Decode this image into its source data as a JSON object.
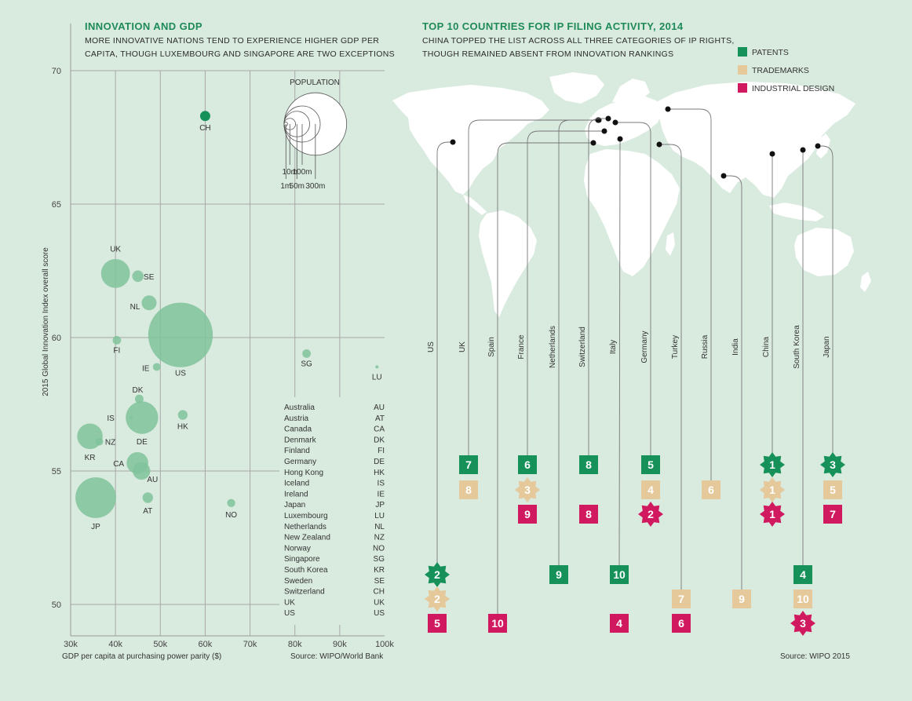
{
  "colors": {
    "background": "#d9eadf",
    "gdp_bubble": "#7fc39b",
    "ch_bubble": "#16915a",
    "grid": "#a8a8a8",
    "patents": "#16915a",
    "trademarks": "#e6c99a",
    "industrial_design": "#d0195f",
    "map_land": "#ffffff",
    "title": "#1e8a58"
  },
  "left_panel": {
    "title": "INNOVATION AND GDP",
    "subtitle_line1": "MORE INNOVATIVE NATIONS TEND TO EXPERIENCE HIGHER GDP PER",
    "subtitle_line2": "CAPITA, THOUGH LUXEMBOURG AND SINGAPORE ARE TWO EXCEPTIONS",
    "source": "Source: WIPO/World Bank",
    "population_key": {
      "title": "POPULATION",
      "labels": [
        "1m",
        "10m",
        "50m",
        "100m",
        "300m"
      ],
      "values": [
        1,
        10,
        50,
        100,
        300
      ]
    },
    "abbreviations": [
      {
        "name": "Australia",
        "code": "AU"
      },
      {
        "name": "Austria",
        "code": "AT"
      },
      {
        "name": "Canada",
        "code": "CA"
      },
      {
        "name": "Denmark",
        "code": "DK"
      },
      {
        "name": "Finland",
        "code": "FI"
      },
      {
        "name": "Germany",
        "code": "DE"
      },
      {
        "name": "Hong Kong",
        "code": "HK"
      },
      {
        "name": "Iceland",
        "code": "IS"
      },
      {
        "name": "Ireland",
        "code": "IE"
      },
      {
        "name": "Japan",
        "code": "JP"
      },
      {
        "name": "Luxembourg",
        "code": "LU"
      },
      {
        "name": "Netherlands",
        "code": "NL"
      },
      {
        "name": "New Zealand",
        "code": "NZ"
      },
      {
        "name": "Norway",
        "code": "NO"
      },
      {
        "name": "Singapore",
        "code": "SG"
      },
      {
        "name": "South Korea",
        "code": "KR"
      },
      {
        "name": "Sweden",
        "code": "SE"
      },
      {
        "name": "Switzerland",
        "code": "CH"
      },
      {
        "name": "UK",
        "code": "UK"
      },
      {
        "name": "US",
        "code": "US"
      }
    ]
  },
  "right_panel": {
    "title": "TOP 10 COUNTRIES FOR IP FILING ACTIVITY, 2014",
    "subtitle_line1": "CHINA TOPPED THE LIST ACROSS ALL THREE CATEGORIES OF IP RIGHTS,",
    "subtitle_line2": "THOUGH REMAINED ABSENT FROM INNOVATION RANKINGS",
    "source": "Source: WIPO 2015",
    "legend": [
      {
        "label": "PATENTS",
        "key": "patents"
      },
      {
        "label": "TRADEMARKS",
        "key": "trademarks"
      },
      {
        "label": "INDUSTRIAL DESIGN",
        "key": "industrial_design"
      }
    ]
  },
  "chart_data": [
    {
      "type": "scatter",
      "title": "INNOVATION AND GDP",
      "xlabel": "GDP per capita at purchasing power parity ($)",
      "ylabel": "2015 Global Innovation Index overall score",
      "xlim": [
        30000,
        100000
      ],
      "ylim": [
        49,
        71
      ],
      "x_ticks": [
        30000,
        40000,
        50000,
        60000,
        70000,
        80000,
        90000,
        100000
      ],
      "x_tick_labels": [
        "30k",
        "40k",
        "50k",
        "60k",
        "70k",
        "80k",
        "90k",
        "100k"
      ],
      "y_ticks": [
        50,
        55,
        60,
        65,
        70
      ],
      "y_tick_labels": [
        "50",
        "55",
        "60",
        "65",
        "70"
      ],
      "grid": true,
      "size_encoding": "population (m)",
      "points": [
        {
          "code": "CH",
          "x": 60000,
          "y": 68.3,
          "pop": 8
        },
        {
          "code": "UK",
          "x": 40000,
          "y": 62.4,
          "pop": 64
        },
        {
          "code": "SE",
          "x": 45000,
          "y": 62.3,
          "pop": 10
        },
        {
          "code": "NL",
          "x": 47500,
          "y": 61.3,
          "pop": 17
        },
        {
          "code": "US",
          "x": 54500,
          "y": 60.1,
          "pop": 320
        },
        {
          "code": "FI",
          "x": 40300,
          "y": 59.9,
          "pop": 5.5
        },
        {
          "code": "IE",
          "x": 49200,
          "y": 58.9,
          "pop": 4.6
        },
        {
          "code": "SG",
          "x": 82600,
          "y": 59.4,
          "pop": 5.5
        },
        {
          "code": "LU",
          "x": 98300,
          "y": 58.9,
          "pop": 0.55
        },
        {
          "code": "DK",
          "x": 45300,
          "y": 57.7,
          "pop": 5.7
        },
        {
          "code": "HK",
          "x": 55000,
          "y": 57.1,
          "pop": 7.2
        },
        {
          "code": "IS",
          "x": 43500,
          "y": 57.0,
          "pop": 0.33
        },
        {
          "code": "DE",
          "x": 45900,
          "y": 57.0,
          "pop": 81
        },
        {
          "code": "KR",
          "x": 34300,
          "y": 56.3,
          "pop": 50
        },
        {
          "code": "NZ",
          "x": 36400,
          "y": 56.1,
          "pop": 4.5
        },
        {
          "code": "CA",
          "x": 44900,
          "y": 55.3,
          "pop": 36
        },
        {
          "code": "AU",
          "x": 45800,
          "y": 55.0,
          "pop": 23.5
        },
        {
          "code": "AT",
          "x": 47200,
          "y": 54.0,
          "pop": 8.5
        },
        {
          "code": "NO",
          "x": 65800,
          "y": 53.8,
          "pop": 5.1
        },
        {
          "code": "JP",
          "x": 35600,
          "y": 54.0,
          "pop": 127
        }
      ]
    },
    {
      "type": "table",
      "title": "TOP 10 COUNTRIES FOR IP FILING ACTIVITY, 2014",
      "series_names": [
        "PATENTS",
        "TRADEMARKS",
        "INDUSTRIAL DESIGN"
      ],
      "rows": [
        {
          "country": "US",
          "patents": 2,
          "trademarks": 2,
          "design": 5
        },
        {
          "country": "UK",
          "patents": 7,
          "trademarks": 8,
          "design": null
        },
        {
          "country": "Spain",
          "patents": null,
          "trademarks": null,
          "design": 10
        },
        {
          "country": "France",
          "patents": 6,
          "trademarks": 3,
          "design": 9
        },
        {
          "country": "Netherlands",
          "patents": 9,
          "trademarks": null,
          "design": null
        },
        {
          "country": "Switzerland",
          "patents": 8,
          "trademarks": null,
          "design": 8
        },
        {
          "country": "Italy",
          "patents": 10,
          "trademarks": null,
          "design": 4
        },
        {
          "country": "Germany",
          "patents": 5,
          "trademarks": 4,
          "design": 2
        },
        {
          "country": "Turkey",
          "patents": null,
          "trademarks": 7,
          "design": 6
        },
        {
          "country": "Russia",
          "patents": null,
          "trademarks": 6,
          "design": null
        },
        {
          "country": "India",
          "patents": null,
          "trademarks": 9,
          "design": null
        },
        {
          "country": "China",
          "patents": 1,
          "trademarks": 1,
          "design": 1
        },
        {
          "country": "South Korea",
          "patents": 4,
          "trademarks": 10,
          "design": 3
        },
        {
          "country": "Japan",
          "patents": 3,
          "trademarks": 5,
          "design": 7
        }
      ]
    }
  ]
}
